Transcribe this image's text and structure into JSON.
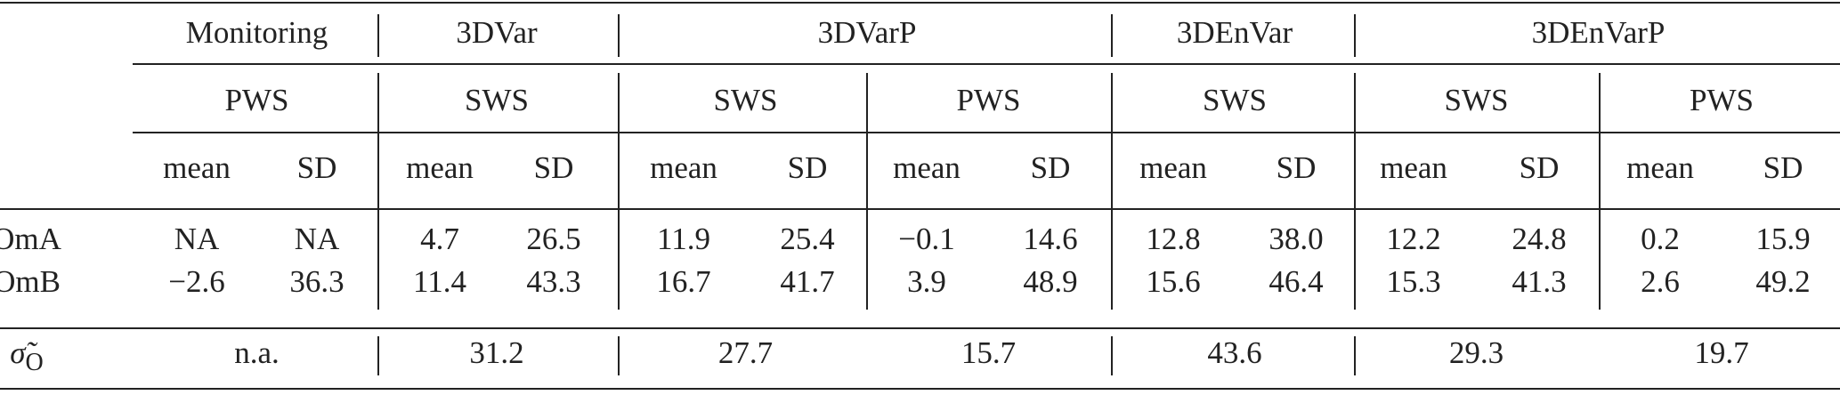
{
  "table": {
    "groups": [
      {
        "name": "Monitoring",
        "subgroups": [
          "PWS"
        ]
      },
      {
        "name": "3DVar",
        "subgroups": [
          "SWS"
        ]
      },
      {
        "name": "3DVarP",
        "subgroups": [
          "SWS",
          "PWS"
        ]
      },
      {
        "name": "3DEnVar",
        "subgroups": [
          "SWS"
        ]
      },
      {
        "name": "3DEnVarP",
        "subgroups": [
          "SWS",
          "PWS"
        ]
      }
    ],
    "stat_headers": [
      "mean",
      "SD",
      "mean",
      "SD",
      "mean",
      "SD",
      "mean",
      "SD",
      "mean",
      "SD",
      "mean",
      "SD",
      "mean",
      "SD"
    ],
    "rows": [
      {
        "label": "OmA",
        "values": [
          "NA",
          "NA",
          "4.7",
          "26.5",
          "11.9",
          "25.4",
          "−0.1",
          "14.6",
          "12.8",
          "38.0",
          "12.2",
          "24.8",
          "0.2",
          "15.9"
        ]
      },
      {
        "label": "OmB",
        "values": [
          "−2.6",
          "36.3",
          "11.4",
          "43.3",
          "16.7",
          "41.7",
          "3.9",
          "48.9",
          "15.6",
          "46.4",
          "15.3",
          "41.3",
          "2.6",
          "49.2"
        ]
      }
    ],
    "sigma_row": {
      "symbol": "σ̃",
      "subscript": "O",
      "values": [
        "n.a.",
        "31.2",
        "27.7",
        "15.7",
        "43.6",
        "29.3",
        "19.7"
      ]
    }
  }
}
